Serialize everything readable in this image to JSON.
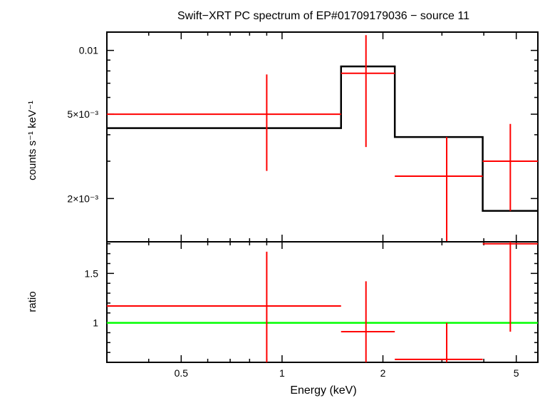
{
  "chart_data": [
    {
      "type": "scatter",
      "panel": "spectrum",
      "title": "Swift−XRT PC spectrum of EP#01709179036 − source 11",
      "ylabel": "counts s⁻¹ keV⁻¹",
      "yscale": "log",
      "xscale": "log",
      "xlim": [
        0.3,
        5.8
      ],
      "ylim": [
        0.00125,
        0.0122
      ],
      "y_ticks": [
        {
          "value": 0.01,
          "label": "0.01"
        },
        {
          "value": 0.005,
          "label": "5×10⁻³"
        },
        {
          "value": 0.002,
          "label": "2×10⁻³"
        }
      ],
      "series": [
        {
          "color": "#ff0000",
          "style": "errorbars",
          "points": [
            {
              "x": 0.9,
              "xlo": 0.3,
              "xhi": 1.5,
              "y": 0.005,
              "ylo": 0.0027,
              "yhi": 0.0077
            },
            {
              "x": 1.78,
              "xlo": 1.5,
              "xhi": 2.17,
              "y": 0.0078,
              "ylo": 0.0035,
              "yhi": 0.0118
            },
            {
              "x": 3.1,
              "xlo": 2.17,
              "xhi": 3.97,
              "y": 0.00255,
              "ylo": 0.00125,
              "yhi": 0.0039
            },
            {
              "x": 4.8,
              "xlo": 3.97,
              "xhi": 5.8,
              "y": 0.003,
              "ylo": 0.00175,
              "yhi": 0.0045
            }
          ]
        },
        {
          "color": "#000000",
          "style": "step",
          "bins": [
            {
              "xlo": 0.3,
              "xhi": 1.5,
              "y": 0.0043
            },
            {
              "xlo": 1.5,
              "xhi": 2.17,
              "y": 0.0084
            },
            {
              "xlo": 2.17,
              "xhi": 3.97,
              "y": 0.0039
            },
            {
              "xlo": 3.97,
              "xhi": 5.8,
              "y": 0.00175
            }
          ]
        }
      ]
    },
    {
      "type": "scatter",
      "panel": "ratio",
      "xlabel": "Energy (keV)",
      "ylabel": "ratio",
      "xscale": "log",
      "xlim": [
        0.3,
        5.8
      ],
      "ylim": [
        0.6,
        1.82
      ],
      "x_ticks": [
        {
          "value": 0.5,
          "label": "0.5"
        },
        {
          "value": 1,
          "label": "1"
        },
        {
          "value": 2,
          "label": "2"
        },
        {
          "value": 5,
          "label": "5"
        }
      ],
      "y_ticks": [
        {
          "value": 1.5,
          "label": "1.5"
        },
        {
          "value": 1,
          "label": "1"
        }
      ],
      "reference_line": {
        "y": 1,
        "color": "#00ff00"
      },
      "series": [
        {
          "color": "#ff0000",
          "style": "errorbars",
          "points": [
            {
              "x": 0.9,
              "xlo": 0.3,
              "xhi": 1.5,
              "y": 1.17,
              "ylo": 0.6,
              "yhi": 1.72
            },
            {
              "x": 1.78,
              "xlo": 1.5,
              "xhi": 2.17,
              "y": 0.91,
              "ylo": 0.6,
              "yhi": 1.42
            },
            {
              "x": 3.1,
              "xlo": 2.17,
              "xhi": 3.97,
              "y": 0.63,
              "ylo": 0.6,
              "yhi": 1.0
            },
            {
              "x": 4.8,
              "xlo": 3.97,
              "xhi": 5.8,
              "y": 1.8,
              "ylo": 0.91,
              "yhi": 1.82
            }
          ]
        }
      ]
    }
  ]
}
